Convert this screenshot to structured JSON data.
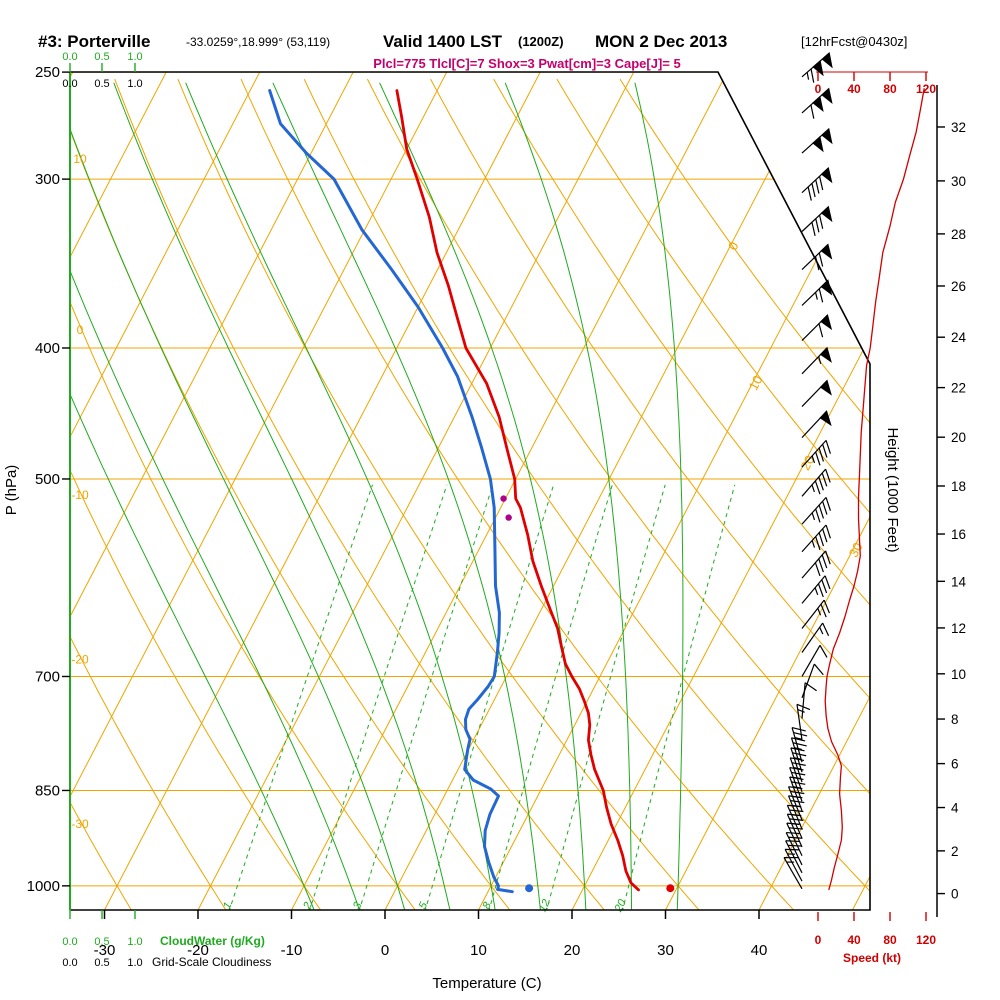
{
  "header": {
    "station": "#3: Porterville",
    "coords": "-33.0259°,18.999° (53,119)",
    "valid": "Valid 1400 LST",
    "zulu": "(1200Z)",
    "date": "MON 2 Dec 2013",
    "fcst": "[12hrFcst@0430z]",
    "indices": "Plcl=775 Tlcl[C]=7 Shox=3 Pwat[cm]=3 Cape[J]= 5"
  },
  "axes": {
    "pressure": {
      "label": "P (hPa)",
      "ticks": [
        250,
        300,
        400,
        500,
        700,
        850,
        1000
      ]
    },
    "temperature": {
      "label": "Temperature (C)",
      "ticks": [
        -30,
        -20,
        -10,
        0,
        10,
        20,
        30,
        40
      ]
    },
    "height": {
      "label": "Height (1000 Feet)",
      "ticks": [
        0,
        2,
        4,
        6,
        8,
        10,
        12,
        14,
        16,
        18,
        20,
        22,
        24,
        26,
        28,
        30,
        32
      ]
    },
    "speed": {
      "label": "Speed (kt)",
      "ticks": [
        0,
        40,
        80,
        120
      ]
    },
    "cloudwater": {
      "label": "CloudWater (g/Kg)",
      "scale": [
        "0.0",
        "0.5",
        "1.0"
      ]
    },
    "cloudiness": {
      "label": "Grid-Scale Cloudiness",
      "scale": [
        "0.0",
        "0.5",
        "1.0"
      ]
    }
  },
  "chart_data": {
    "type": "line",
    "title": "Skew-T log-P sounding, #3: Porterville, 12hr forecast valid 1400 LST 2 Dec 2013",
    "pressure_range_hPa": [
      1045,
      250
    ],
    "surface_temperature_axis_range_C": [
      -40,
      45
    ],
    "temperature_profile": [
      [
        258,
        -44.3
      ],
      [
        270,
        -42.3
      ],
      [
        285,
        -40.0
      ],
      [
        300,
        -37.2
      ],
      [
        320,
        -33.8
      ],
      [
        340,
        -31.0
      ],
      [
        360,
        -27.9
      ],
      [
        380,
        -25.2
      ],
      [
        400,
        -22.6
      ],
      [
        425,
        -18.4
      ],
      [
        450,
        -15.2
      ],
      [
        475,
        -12.6
      ],
      [
        500,
        -10.1
      ],
      [
        517,
        -8.9
      ],
      [
        525,
        -7.9
      ],
      [
        550,
        -5.6
      ],
      [
        575,
        -3.6
      ],
      [
        600,
        -1.3
      ],
      [
        625,
        1.0
      ],
      [
        645,
        2.8
      ],
      [
        665,
        4.2
      ],
      [
        685,
        5.6
      ],
      [
        700,
        7.0
      ],
      [
        715,
        8.5
      ],
      [
        730,
        9.7
      ],
      [
        745,
        10.8
      ],
      [
        760,
        11.6
      ],
      [
        780,
        12.3
      ],
      [
        800,
        13.4
      ],
      [
        820,
        14.6
      ],
      [
        850,
        16.7
      ],
      [
        875,
        18.0
      ],
      [
        900,
        19.4
      ],
      [
        925,
        21.0
      ],
      [
        950,
        22.4
      ],
      [
        975,
        23.6
      ],
      [
        995,
        24.8
      ],
      [
        1007,
        26.0
      ]
    ],
    "dewpoint_profile": [
      [
        258,
        -57.9
      ],
      [
        273,
        -54.9
      ],
      [
        287,
        -50.5
      ],
      [
        300,
        -46.1
      ],
      [
        327,
        -40.3
      ],
      [
        350,
        -34.9
      ],
      [
        373,
        -30.0
      ],
      [
        400,
        -25.1
      ],
      [
        420,
        -21.9
      ],
      [
        450,
        -18.1
      ],
      [
        473,
        -15.5
      ],
      [
        500,
        -12.7
      ],
      [
        525,
        -10.7
      ],
      [
        562,
        -8.4
      ],
      [
        600,
        -6.2
      ],
      [
        628,
        -4.3
      ],
      [
        650,
        -3.2
      ],
      [
        672,
        -2.3
      ],
      [
        700,
        -1.3
      ],
      [
        712,
        -1.4
      ],
      [
        728,
        -1.8
      ],
      [
        740,
        -2.2
      ],
      [
        753,
        -2.0
      ],
      [
        766,
        -1.4
      ],
      [
        779,
        -0.4
      ],
      [
        792,
        -0.1
      ],
      [
        806,
        0.3
      ],
      [
        820,
        0.7
      ],
      [
        835,
        2.2
      ],
      [
        848,
        4.6
      ],
      [
        858,
        5.8
      ],
      [
        885,
        5.9
      ],
      [
        910,
        6.3
      ],
      [
        935,
        7.1
      ],
      [
        960,
        8.4
      ],
      [
        985,
        9.8
      ],
      [
        1000,
        10.8
      ],
      [
        1006,
        10.9
      ],
      [
        1010,
        12.6
      ]
    ],
    "surface_temp_dot": {
      "p": 1004,
      "t": 29.3
    },
    "surface_dewpoint_dot": {
      "p": 1004,
      "t": 14.2
    },
    "parcel_dots": [
      {
        "p": 517,
        "t": -10.2
      },
      {
        "p": 534,
        "t": -8.6
      }
    ],
    "wind_barbs": [
      [
        1005,
        150,
        15
      ],
      [
        992,
        152,
        16
      ],
      [
        978,
        153,
        18
      ],
      [
        965,
        154,
        20
      ],
      [
        950,
        155,
        22
      ],
      [
        936,
        156,
        25
      ],
      [
        922,
        156,
        27
      ],
      [
        908,
        158,
        27
      ],
      [
        894,
        158,
        26
      ],
      [
        880,
        160,
        26
      ],
      [
        866,
        160,
        25
      ],
      [
        852,
        161,
        24
      ],
      [
        838,
        162,
        25
      ],
      [
        824,
        163,
        26
      ],
      [
        810,
        164,
        24
      ],
      [
        780,
        172,
        15
      ],
      [
        752,
        185,
        10
      ],
      [
        726,
        200,
        8
      ],
      [
        700,
        210,
        10
      ],
      [
        672,
        215,
        15
      ],
      [
        645,
        218,
        25
      ],
      [
        618,
        220,
        33
      ],
      [
        592,
        221,
        40
      ],
      [
        566,
        222,
        46
      ],
      [
        540,
        222,
        46
      ],
      [
        515,
        221,
        45
      ],
      [
        490,
        222,
        47
      ],
      [
        466,
        223,
        49
      ],
      [
        442,
        224,
        51
      ],
      [
        418,
        224,
        54
      ],
      [
        395,
        225,
        58
      ],
      [
        372,
        226,
        63
      ],
      [
        350,
        226,
        70
      ],
      [
        328,
        227,
        78
      ],
      [
        307,
        227,
        88
      ],
      [
        287,
        228,
        98
      ],
      [
        268,
        228,
        108
      ],
      [
        252,
        229,
        117
      ]
    ],
    "speed_profile": [
      [
        1007,
        12
      ],
      [
        990,
        15
      ],
      [
        970,
        18
      ],
      [
        948,
        22
      ],
      [
        925,
        26
      ],
      [
        905,
        27
      ],
      [
        880,
        26
      ],
      [
        855,
        24
      ],
      [
        830,
        25
      ],
      [
        815,
        26
      ],
      [
        800,
        22
      ],
      [
        782,
        15
      ],
      [
        765,
        11
      ],
      [
        748,
        9
      ],
      [
        730,
        8
      ],
      [
        712,
        9
      ],
      [
        700,
        10
      ],
      [
        685,
        13
      ],
      [
        668,
        17
      ],
      [
        650,
        24
      ],
      [
        632,
        30
      ],
      [
        615,
        35
      ],
      [
        600,
        40
      ],
      [
        585,
        44
      ],
      [
        570,
        47
      ],
      [
        552,
        46
      ],
      [
        535,
        45
      ],
      [
        516,
        45
      ],
      [
        498,
        46
      ],
      [
        480,
        47
      ],
      [
        462,
        48
      ],
      [
        445,
        50
      ],
      [
        428,
        52
      ],
      [
        412,
        54
      ],
      [
        400,
        58
      ],
      [
        385,
        61
      ],
      [
        370,
        64
      ],
      [
        355,
        68
      ],
      [
        340,
        72
      ],
      [
        325,
        80
      ],
      [
        312,
        86
      ],
      [
        300,
        95
      ],
      [
        288,
        102
      ],
      [
        277,
        109
      ],
      [
        266,
        114
      ],
      [
        257,
        118
      ]
    ],
    "grid": {
      "isobars_hPa": [
        250,
        300,
        400,
        500,
        700,
        850,
        1000
      ],
      "isotherms_C": {
        "min": -90,
        "max": 50,
        "step": 10,
        "labels": [
          0,
          10,
          20,
          30
        ]
      },
      "dry_adiabats_C": {
        "min": -40,
        "max": 100,
        "step": 10,
        "labels": [
          10,
          0,
          -10,
          -20,
          -30
        ]
      },
      "moist_adiabats_C": [
        -10,
        -5,
        0,
        5,
        10,
        15,
        20,
        25,
        30
      ],
      "mixing_ratio_g_kg": [
        1,
        2,
        3,
        5,
        8,
        12,
        20
      ]
    },
    "colors": {
      "grid": "#f0a500",
      "green": "#1faa1f",
      "temperature": "#e10000",
      "dewpoint": "#2467d2",
      "speed": "#cf0000",
      "magenta": "#c4006e",
      "barb": "#000000"
    }
  }
}
